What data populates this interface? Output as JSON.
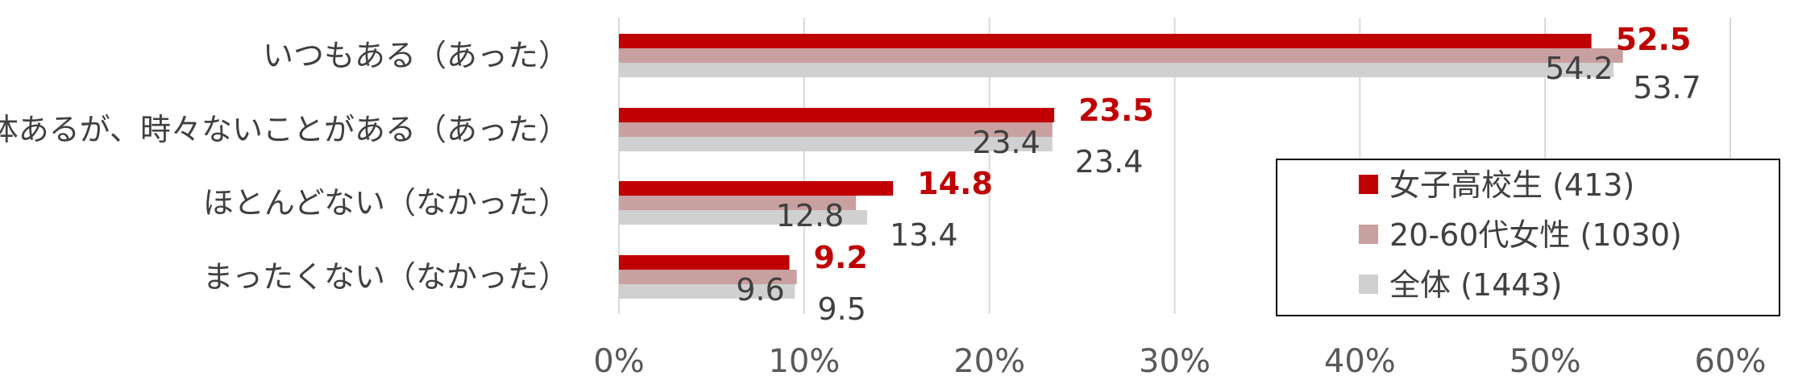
{
  "chart_data": {
    "type": "bar",
    "orientation": "horizontal",
    "categories": [
      "いつもある（あった）",
      "大体あるが、時々ないことがある（あった）",
      "ほとんどない（なかった）",
      "まったくない（なかった）"
    ],
    "series": [
      {
        "name": "女子高校生 (413)",
        "values": [
          52.5,
          23.5,
          14.8,
          9.2
        ],
        "color": "#c00000",
        "label_color": "#c00000",
        "label_bold": true
      },
      {
        "name": "20-60代女性 (1030)",
        "values": [
          54.2,
          23.4,
          12.8,
          9.6
        ],
        "color": "#c9a0a0",
        "label_color": "#404040",
        "label_bold": false
      },
      {
        "name": "全体 (1443)",
        "values": [
          53.7,
          23.4,
          13.4,
          9.5
        ],
        "color": "#d0d0d0",
        "label_color": "#404040",
        "label_bold": false
      }
    ],
    "value_labels": [
      [
        "52.5",
        "23.5",
        "14.8",
        "9.2"
      ],
      [
        "54.2",
        "23.4",
        "12.8",
        "9.6"
      ],
      [
        "53.7",
        "23.4",
        "13.4",
        "9.5"
      ]
    ],
    "xlim": [
      0,
      60
    ],
    "xticks": [
      0,
      10,
      20,
      30,
      40,
      50,
      60
    ],
    "xtick_labels": [
      "0%",
      "10%",
      "20%",
      "30%",
      "40%",
      "50%",
      "60%"
    ],
    "grid": true,
    "legend_position": "bottom-right",
    "title": "",
    "xlabel": "",
    "ylabel": ""
  }
}
